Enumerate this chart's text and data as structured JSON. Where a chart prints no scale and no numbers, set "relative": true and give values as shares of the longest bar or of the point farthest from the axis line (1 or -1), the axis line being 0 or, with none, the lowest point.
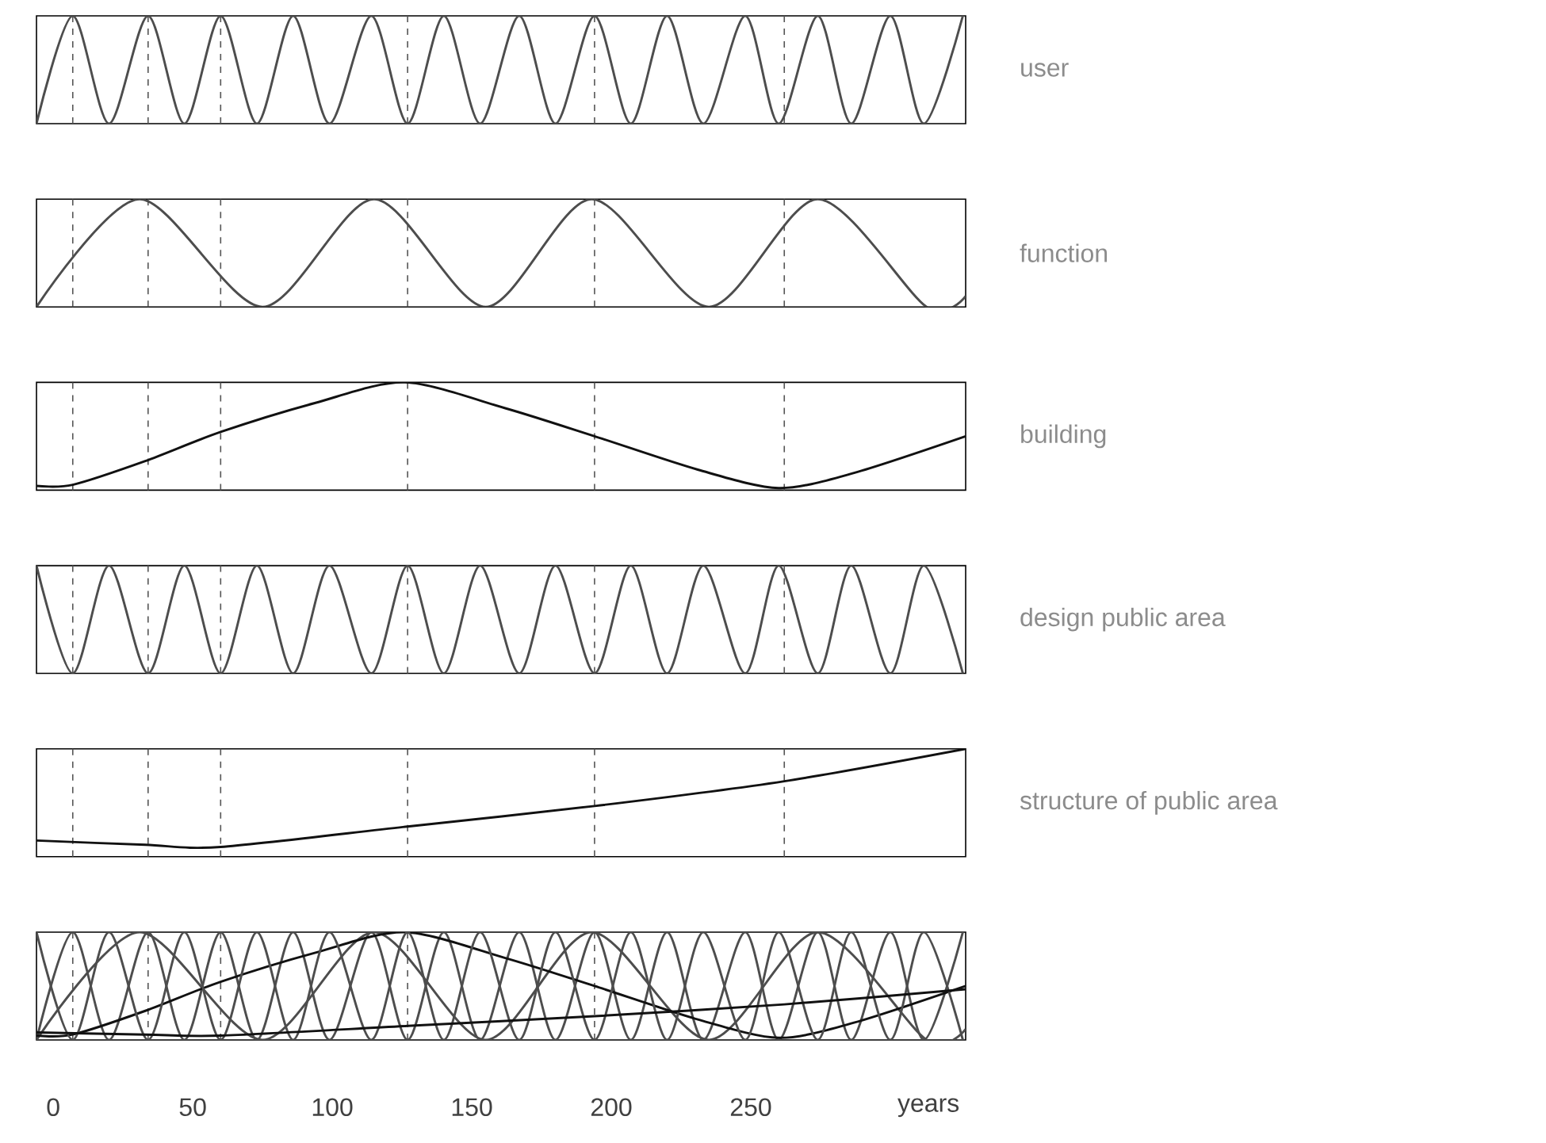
{
  "chart_data": [
    {
      "type": "line",
      "relative": true,
      "xlim": [
        -6,
        327
      ],
      "tick_labels": false,
      "series": [
        {
          "name": "user",
          "color": "#4d4d4d",
          "x": [
            -6,
            7,
            20,
            34,
            47,
            60,
            73,
            86,
            99,
            114,
            127,
            140,
            153,
            167,
            180,
            194,
            207,
            220,
            233,
            248,
            260,
            274,
            286,
            300,
            312,
            326
          ],
          "values": [
            0,
            1,
            0,
            1,
            0,
            1,
            0,
            1,
            0,
            1,
            0,
            1,
            0,
            1,
            0,
            1,
            0,
            1,
            0,
            1,
            0,
            1,
            0,
            1,
            0,
            1
          ]
        }
      ],
      "ref_lines": [
        {
          "axis": "x",
          "value": 7,
          "color": "#555555",
          "line_style": "dashed"
        },
        {
          "axis": "x",
          "value": 34,
          "color": "#555555",
          "line_style": "dashed"
        },
        {
          "axis": "x",
          "value": 60,
          "color": "#555555",
          "line_style": "dashed"
        },
        {
          "axis": "x",
          "value": 127,
          "color": "#555555",
          "line_style": "dashed"
        },
        {
          "axis": "x",
          "value": 194,
          "color": "#555555",
          "line_style": "dashed"
        },
        {
          "axis": "x",
          "value": 262,
          "color": "#555555",
          "line_style": "dashed"
        }
      ]
    },
    {
      "type": "line",
      "relative": true,
      "xlim": [
        -6,
        327
      ],
      "tick_labels": false,
      "series": [
        {
          "name": "function",
          "color": "#4d4d4d",
          "x": [
            -6,
            31,
            75,
            115,
            155,
            193,
            235,
            274,
            313,
            327
          ],
          "values": [
            0,
            1,
            0,
            1,
            0,
            1,
            0,
            1,
            0,
            0.1
          ]
        }
      ],
      "ref_lines": [
        {
          "axis": "x",
          "value": 7,
          "color": "#555555",
          "line_style": "dashed"
        },
        {
          "axis": "x",
          "value": 34,
          "color": "#555555",
          "line_style": "dashed"
        },
        {
          "axis": "x",
          "value": 60,
          "color": "#555555",
          "line_style": "dashed"
        },
        {
          "axis": "x",
          "value": 127,
          "color": "#555555",
          "line_style": "dashed"
        },
        {
          "axis": "x",
          "value": 194,
          "color": "#555555",
          "line_style": "dashed"
        },
        {
          "axis": "x",
          "value": 262,
          "color": "#555555",
          "line_style": "dashed"
        }
      ]
    },
    {
      "type": "line",
      "relative": true,
      "xlim": [
        -6,
        327
      ],
      "tick_labels": false,
      "series": [
        {
          "name": "building",
          "color": "#111111",
          "x": [
            -6,
            7,
            33,
            60,
            94,
            126,
            162,
            194,
            231,
            260,
            287,
            327
          ],
          "values": [
            0.04,
            0.05,
            0.27,
            0.54,
            0.81,
            1,
            0.76,
            0.5,
            0.19,
            0.02,
            0.16,
            0.5
          ]
        }
      ],
      "ref_lines": [
        {
          "axis": "x",
          "value": 7,
          "color": "#555555",
          "line_style": "dashed"
        },
        {
          "axis": "x",
          "value": 34,
          "color": "#555555",
          "line_style": "dashed"
        },
        {
          "axis": "x",
          "value": 60,
          "color": "#555555",
          "line_style": "dashed"
        },
        {
          "axis": "x",
          "value": 127,
          "color": "#555555",
          "line_style": "dashed"
        },
        {
          "axis": "x",
          "value": 194,
          "color": "#555555",
          "line_style": "dashed"
        },
        {
          "axis": "x",
          "value": 262,
          "color": "#555555",
          "line_style": "dashed"
        }
      ]
    },
    {
      "type": "line",
      "relative": true,
      "xlim": [
        -6,
        327
      ],
      "tick_labels": false,
      "series": [
        {
          "name": "design public area",
          "color": "#4d4d4d",
          "x": [
            -6,
            7,
            20,
            34,
            47,
            60,
            73,
            86,
            99,
            114,
            127,
            140,
            153,
            167,
            180,
            194,
            207,
            220,
            233,
            248,
            260,
            274,
            286,
            300,
            312,
            326
          ],
          "values": [
            1,
            0,
            1,
            0,
            1,
            0,
            1,
            0,
            1,
            0,
            1,
            0,
            1,
            0,
            1,
            0,
            1,
            0,
            1,
            0,
            1,
            0,
            1,
            0,
            1,
            0
          ]
        }
      ],
      "ref_lines": [
        {
          "axis": "x",
          "value": 7,
          "color": "#555555",
          "line_style": "dashed"
        },
        {
          "axis": "x",
          "value": 34,
          "color": "#555555",
          "line_style": "dashed"
        },
        {
          "axis": "x",
          "value": 60,
          "color": "#555555",
          "line_style": "dashed"
        },
        {
          "axis": "x",
          "value": 127,
          "color": "#555555",
          "line_style": "dashed"
        },
        {
          "axis": "x",
          "value": 194,
          "color": "#555555",
          "line_style": "dashed"
        },
        {
          "axis": "x",
          "value": 262,
          "color": "#555555",
          "line_style": "dashed"
        }
      ]
    },
    {
      "type": "line",
      "relative": true,
      "xlim": [
        -6,
        327
      ],
      "tick_labels": false,
      "series": [
        {
          "name": "structure of public area",
          "color": "#111111",
          "x": [
            -6,
            33,
            60,
            127,
            194,
            262,
            327
          ],
          "values": [
            0.15,
            0.11,
            0.09,
            0.28,
            0.47,
            0.7,
            1
          ]
        }
      ],
      "ref_lines": [
        {
          "axis": "x",
          "value": 7,
          "color": "#555555",
          "line_style": "dashed"
        },
        {
          "axis": "x",
          "value": 34,
          "color": "#555555",
          "line_style": "dashed"
        },
        {
          "axis": "x",
          "value": 60,
          "color": "#555555",
          "line_style": "dashed"
        },
        {
          "axis": "x",
          "value": 127,
          "color": "#555555",
          "line_style": "dashed"
        },
        {
          "axis": "x",
          "value": 194,
          "color": "#555555",
          "line_style": "dashed"
        },
        {
          "axis": "x",
          "value": 262,
          "color": "#555555",
          "line_style": "dashed"
        }
      ]
    },
    {
      "type": "line",
      "relative": true,
      "xlim": [
        -6,
        327
      ],
      "tick_labels": "x",
      "xlabel": "years",
      "xticks": [
        0,
        50,
        100,
        150,
        200,
        250
      ],
      "series": [
        {
          "color": "#4d4d4d",
          "x": [
            -6,
            7,
            20,
            34,
            47,
            60,
            73,
            86,
            99,
            114,
            127,
            140,
            153,
            167,
            180,
            194,
            207,
            220,
            233,
            248,
            260,
            274,
            286,
            300,
            312,
            326
          ],
          "values": [
            0,
            1,
            0,
            1,
            0,
            1,
            0,
            1,
            0,
            1,
            0,
            1,
            0,
            1,
            0,
            1,
            0,
            1,
            0,
            1,
            0,
            1,
            0,
            1,
            0,
            1
          ]
        },
        {
          "color": "#4d4d4d",
          "x": [
            -6,
            31,
            75,
            115,
            155,
            193,
            235,
            274,
            313,
            327
          ],
          "values": [
            0,
            1,
            0,
            1,
            0,
            1,
            0,
            1,
            0,
            0.1
          ]
        },
        {
          "color": "#111111",
          "x": [
            -6,
            7,
            33,
            60,
            94,
            126,
            162,
            194,
            231,
            260,
            287,
            327
          ],
          "values": [
            0.04,
            0.05,
            0.27,
            0.54,
            0.81,
            1,
            0.76,
            0.5,
            0.19,
            0.02,
            0.16,
            0.5
          ]
        },
        {
          "color": "#4d4d4d",
          "x": [
            -6,
            7,
            20,
            34,
            47,
            60,
            73,
            86,
            99,
            114,
            127,
            140,
            153,
            167,
            180,
            194,
            207,
            220,
            233,
            248,
            260,
            274,
            286,
            300,
            312,
            326
          ],
          "values": [
            1,
            0,
            1,
            0,
            1,
            0,
            1,
            0,
            1,
            0,
            1,
            0,
            1,
            0,
            1,
            0,
            1,
            0,
            1,
            0,
            1,
            0,
            1,
            0,
            1,
            0
          ]
        },
        {
          "color": "#111111",
          "x": [
            -6,
            33,
            60,
            127,
            194,
            262,
            327
          ],
          "values": [
            0.07,
            0.05,
            0.04,
            0.13,
            0.22,
            0.33,
            0.47
          ]
        }
      ],
      "ref_lines": [
        {
          "axis": "x",
          "value": 7,
          "color": "#555555",
          "line_style": "dashed"
        },
        {
          "axis": "x",
          "value": 34,
          "color": "#555555",
          "line_style": "dashed"
        },
        {
          "axis": "x",
          "value": 60,
          "color": "#555555",
          "line_style": "dashed"
        },
        {
          "axis": "x",
          "value": 127,
          "color": "#555555",
          "line_style": "dashed"
        },
        {
          "axis": "x",
          "value": 194,
          "color": "#555555",
          "line_style": "dashed"
        }
      ]
    }
  ]
}
